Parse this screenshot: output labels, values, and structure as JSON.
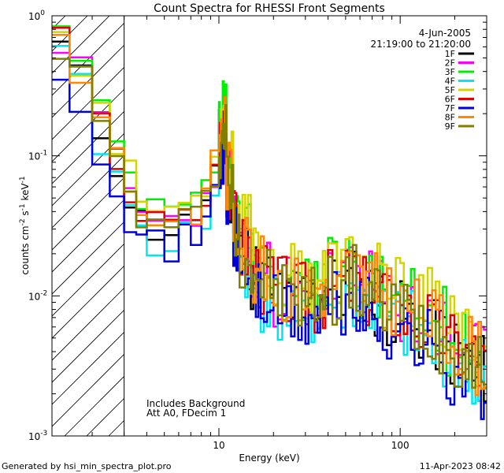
{
  "chart_data": {
    "type": "line",
    "title": "Count Spectra for RHESSI Front Segments",
    "xlabel": "Energy (keV)",
    "ylabel_parts": [
      "counts cm",
      "-2",
      " s",
      "-1",
      " keV",
      "-1"
    ],
    "xscale": "log",
    "yscale": "log",
    "xlim": [
      1.2,
      300
    ],
    "ylim": [
      0.001,
      1
    ],
    "x_ticks": [
      {
        "value": 10,
        "label": "10"
      },
      {
        "value": 100,
        "label": "100"
      }
    ],
    "y_ticks": [
      {
        "value": 0.001,
        "base": "10",
        "exp": "-3"
      },
      {
        "value": 0.01,
        "base": "10",
        "exp": "-2"
      },
      {
        "value": 0.1,
        "base": "10",
        "exp": "-1"
      },
      {
        "value": 1,
        "base": "10",
        "exp": "0"
      }
    ],
    "attenuator_cutoff_kev": 3,
    "date": "4-Jun-2005",
    "time_range": "21:19:00 to 21:20:00",
    "annotations": [
      "Includes Background",
      "Att A0, FDecim 1"
    ],
    "footer_left": "Generated by hsi_min_spectra_plot.pro",
    "footer_right": "11-Apr-2023 08:42",
    "series": [
      {
        "name": "1F",
        "color": "#000000",
        "seed": 11,
        "offset": 0.0
      },
      {
        "name": "2F",
        "color": "#ff00ff",
        "seed": 23,
        "offset": 0.05
      },
      {
        "name": "3F",
        "color": "#00ee00",
        "seed": 37,
        "offset": 0.1
      },
      {
        "name": "4F",
        "color": "#00e5ee",
        "seed": 41,
        "offset": -0.08
      },
      {
        "name": "5F",
        "color": "#d4d400",
        "seed": 53,
        "offset": 0.15
      },
      {
        "name": "6F",
        "color": "#dd0000",
        "seed": 67,
        "offset": 0.04
      },
      {
        "name": "7F",
        "color": "#0000dd",
        "seed": 71,
        "offset": -0.12
      },
      {
        "name": "8F",
        "color": "#ff8800",
        "seed": 83,
        "offset": 0.08
      },
      {
        "name": "9F",
        "color": "#808000",
        "seed": 97,
        "offset": 0.02
      }
    ],
    "energy_bins_kev": [
      1.2,
      1.5,
      2,
      2.5,
      3,
      3.5,
      4,
      5,
      6,
      7,
      8,
      9,
      10,
      10.5,
      11,
      12,
      13,
      15,
      17,
      20,
      25,
      30,
      35,
      40,
      50,
      60,
      70,
      80,
      100,
      120,
      150,
      180,
      220,
      260,
      300
    ],
    "base_spectrum": [
      0.6,
      0.35,
      0.15,
      0.09,
      0.05,
      0.035,
      0.03,
      0.03,
      0.032,
      0.035,
      0.045,
      0.07,
      0.12,
      0.15,
      0.06,
      0.03,
      0.02,
      0.014,
      0.012,
      0.01,
      0.009,
      0.009,
      0.01,
      0.011,
      0.012,
      0.01,
      0.009,
      0.008,
      0.007,
      0.006,
      0.005,
      0.004,
      0.0035,
      0.003,
      0.0025
    ]
  }
}
